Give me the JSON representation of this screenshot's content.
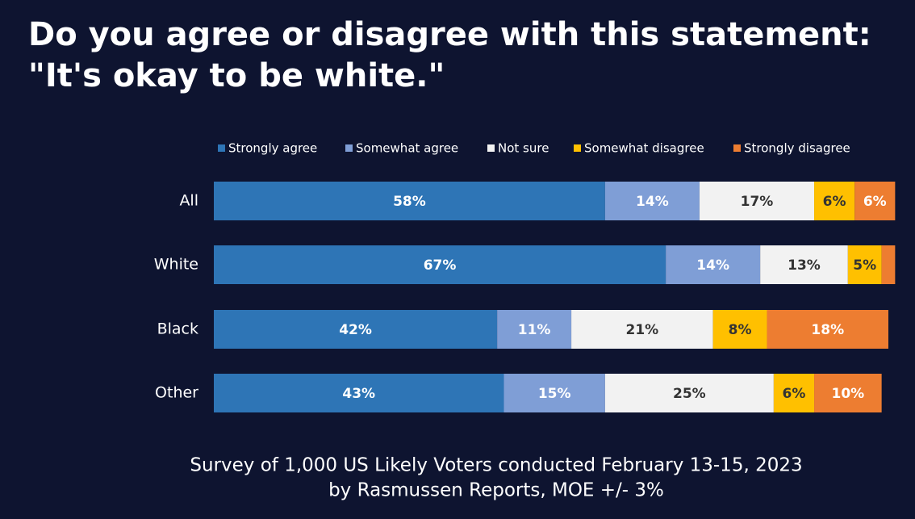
{
  "chart_data": {
    "type": "stacked-bar-horizontal",
    "title": [
      "Do you agree or disagree with this statement:",
      "\"It's okay to be white.\""
    ],
    "footer": [
      "Survey of 1,000 US Likely Voters conducted February 13-15, 2023",
      "by Rasmussen Reports, MOE +/- 3%"
    ],
    "categories": [
      "All",
      "White",
      "Black",
      "Other"
    ],
    "xlim": [
      0,
      100
    ],
    "series": [
      {
        "name": "Strongly agree",
        "color": "#2e75b6",
        "label_color": "#ffffff",
        "values": [
          58,
          67,
          42,
          43
        ],
        "value_labels": [
          "58%",
          "67%",
          "42%",
          "43%"
        ]
      },
      {
        "name": "Somewhat agree",
        "color": "#7f9ed6",
        "label_color": "#ffffff",
        "values": [
          14,
          14,
          11,
          15
        ],
        "value_labels": [
          "14%",
          "14%",
          "11%",
          "15%"
        ]
      },
      {
        "name": "Not sure",
        "color": "#f2f2f2",
        "label_color": "#333333",
        "values": [
          17,
          13,
          21,
          25
        ],
        "value_labels": [
          "17%",
          "13%",
          "21%",
          "25%"
        ]
      },
      {
        "name": "Somewhat disagree",
        "color": "#ffc000",
        "label_color": "#333333",
        "values": [
          6,
          5,
          8,
          6
        ],
        "value_labels": [
          "6%",
          "5%",
          "8%",
          "6%"
        ]
      },
      {
        "name": "Strongly disagree",
        "color": "#ed7d31",
        "label_color": "#ffffff",
        "values": [
          6,
          2,
          18,
          10
        ],
        "value_labels": [
          "6%",
          null,
          "18%",
          "10%"
        ]
      }
    ]
  }
}
